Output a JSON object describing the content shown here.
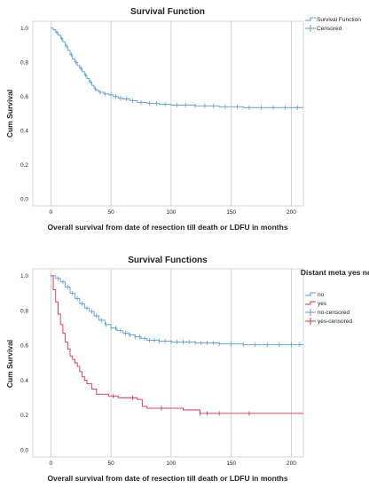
{
  "chart_data": [
    {
      "type": "line",
      "title": "Survival Function",
      "xlabel": "Overall survival from date of resection till death or LDFU in months",
      "ylabel": "Cum Survival",
      "xlim": [
        -15,
        210
      ],
      "ylim": [
        -0.04,
        1.04
      ],
      "x_ticks": [
        "0",
        "50",
        "100",
        "150",
        "200"
      ],
      "y_ticks": [
        "0.0",
        "0.2",
        "0.4",
        "0.6",
        "0.8",
        "1.0"
      ],
      "grid": true,
      "legend_position": "top-right",
      "legend": [
        "Survival Function",
        "Censored"
      ],
      "legend_title": "",
      "series": [
        {
          "name": "Survival Function",
          "color": "#5b9bd5",
          "x": [
            0,
            2,
            4,
            6,
            8,
            10,
            12,
            14,
            16,
            18,
            20,
            22,
            24,
            26,
            28,
            30,
            32,
            34,
            36,
            38,
            40,
            44,
            48,
            52,
            56,
            60,
            66,
            72,
            80,
            90,
            100,
            120,
            140,
            160,
            180,
            210
          ],
          "y": [
            1.0,
            0.99,
            0.975,
            0.96,
            0.94,
            0.92,
            0.895,
            0.87,
            0.845,
            0.82,
            0.8,
            0.78,
            0.765,
            0.745,
            0.725,
            0.705,
            0.685,
            0.665,
            0.645,
            0.635,
            0.625,
            0.615,
            0.61,
            0.6,
            0.59,
            0.585,
            0.575,
            0.565,
            0.56,
            0.555,
            0.55,
            0.545,
            0.54,
            0.535,
            0.535,
            0.535
          ],
          "censored_x": [
            5,
            9,
            13,
            17,
            21,
            25,
            29,
            33,
            37,
            41,
            45,
            50,
            54,
            58,
            63,
            68,
            75,
            82,
            88,
            95,
            105,
            112,
            120,
            128,
            135,
            145,
            155,
            165,
            175,
            185,
            195,
            205
          ]
        }
      ]
    },
    {
      "type": "line",
      "title": "Survival Functions",
      "xlabel": "Overall survival from date of resection till death or LDFU in months",
      "ylabel": "Cum Survival",
      "xlim": [
        -15,
        210
      ],
      "ylim": [
        -0.04,
        1.04
      ],
      "x_ticks": [
        "0",
        "50",
        "100",
        "150",
        "200"
      ],
      "y_ticks": [
        "0.0",
        "0.2",
        "0.4",
        "0.6",
        "0.8",
        "1.0"
      ],
      "grid": true,
      "legend_position": "top-right",
      "legend_title": "Distant meta yes no",
      "legend": [
        "no",
        "yes",
        "no-censored",
        "yes-censored"
      ],
      "series": [
        {
          "name": "no",
          "color": "#5b9bd5",
          "x": [
            0,
            4,
            8,
            12,
            16,
            20,
            24,
            28,
            32,
            36,
            40,
            45,
            50,
            55,
            60,
            65,
            70,
            75,
            80,
            90,
            100,
            120,
            140,
            160,
            180,
            210
          ],
          "y": [
            1.0,
            0.985,
            0.965,
            0.935,
            0.9,
            0.87,
            0.84,
            0.815,
            0.795,
            0.77,
            0.745,
            0.72,
            0.7,
            0.685,
            0.67,
            0.66,
            0.65,
            0.64,
            0.63,
            0.625,
            0.62,
            0.615,
            0.61,
            0.605,
            0.605,
            0.605
          ],
          "censored_x": [
            6,
            10,
            14,
            18,
            22,
            26,
            30,
            34,
            38,
            42,
            46,
            50,
            54,
            58,
            62,
            66,
            70,
            74,
            78,
            82,
            86,
            90,
            95,
            100,
            105,
            110,
            115,
            120,
            125,
            130,
            135,
            140,
            150,
            160,
            170,
            180,
            190,
            200,
            207
          ]
        },
        {
          "name": "yes",
          "color": "#d62d4f",
          "x": [
            0,
            2,
            4,
            6,
            8,
            10,
            12,
            14,
            16,
            18,
            20,
            22,
            24,
            26,
            28,
            30,
            34,
            38,
            42,
            48,
            56,
            64,
            72,
            76,
            80,
            90,
            100,
            110,
            120,
            124,
            130,
            150,
            170,
            210
          ],
          "y": [
            1.0,
            0.92,
            0.85,
            0.78,
            0.72,
            0.67,
            0.62,
            0.58,
            0.54,
            0.52,
            0.5,
            0.48,
            0.45,
            0.42,
            0.4,
            0.38,
            0.35,
            0.32,
            0.32,
            0.31,
            0.3,
            0.3,
            0.29,
            0.25,
            0.24,
            0.24,
            0.24,
            0.23,
            0.23,
            0.21,
            0.21,
            0.21,
            0.21,
            0.21
          ],
          "censored_x": [
            52,
            68,
            92,
            124,
            130,
            140,
            165
          ]
        }
      ]
    }
  ]
}
